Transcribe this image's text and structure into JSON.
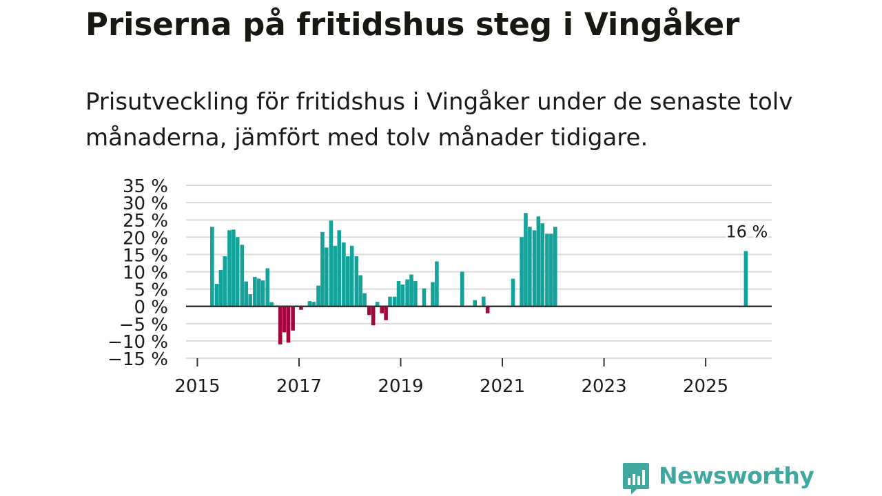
{
  "header": {
    "title": "Priserna på fritidshus steg i Vingåker",
    "subtitle": "Prisutveckling för fritidshus i Vingåker under de senaste tolv månaderna, jämfört med tolv månader tidigare."
  },
  "brand": {
    "name": "Newsworthy",
    "color": "#40a89e"
  },
  "colors": {
    "positive": "#13a39b",
    "negative": "#a3063f",
    "grid": "#d9d9d9",
    "zero_line": "#333333",
    "text": "#1a1a1a"
  },
  "chart_data": {
    "type": "bar",
    "title": "Priserna på fritidshus steg i Vingåker",
    "xlabel": "",
    "ylabel": "",
    "unit": "%",
    "xlim": [
      2014.75,
      2026.3
    ],
    "ylim": [
      -15,
      35
    ],
    "yticks": [
      -15,
      -10,
      -5,
      0,
      5,
      10,
      15,
      20,
      25,
      30,
      35
    ],
    "ytick_labels": [
      "−15 %",
      "−10 %",
      "−5 %",
      "0 %",
      "5 %",
      "10 %",
      "15 %",
      "20 %",
      "25 %",
      "30 %",
      "35 %"
    ],
    "xticks": [
      2015,
      2017,
      2019,
      2021,
      2023,
      2025
    ],
    "xtick_labels": [
      "2015",
      "2017",
      "2019",
      "2021",
      "2023",
      "2025"
    ],
    "annotation": {
      "x": 2025.79,
      "value": 16,
      "label": "16 %"
    },
    "series": [
      {
        "name": "Prisutveckling",
        "points": [
          {
            "x": 2015.29,
            "value": 23
          },
          {
            "x": 2015.38,
            "value": 6.5
          },
          {
            "x": 2015.46,
            "value": 10.5
          },
          {
            "x": 2015.54,
            "value": 14.5
          },
          {
            "x": 2015.63,
            "value": 22
          },
          {
            "x": 2015.71,
            "value": 22.2
          },
          {
            "x": 2015.79,
            "value": 20
          },
          {
            "x": 2015.88,
            "value": 17.8
          },
          {
            "x": 2015.96,
            "value": 7.2
          },
          {
            "x": 2016.04,
            "value": 3.5
          },
          {
            "x": 2016.13,
            "value": 8.5
          },
          {
            "x": 2016.21,
            "value": 8
          },
          {
            "x": 2016.29,
            "value": 7.5
          },
          {
            "x": 2016.38,
            "value": 11
          },
          {
            "x": 2016.46,
            "value": 1.2
          },
          {
            "x": 2016.63,
            "value": -11
          },
          {
            "x": 2016.71,
            "value": -7.5
          },
          {
            "x": 2016.79,
            "value": -10.5
          },
          {
            "x": 2016.88,
            "value": -7
          },
          {
            "x": 2017.04,
            "value": -1
          },
          {
            "x": 2017.21,
            "value": 1.5
          },
          {
            "x": 2017.29,
            "value": 1.3
          },
          {
            "x": 2017.38,
            "value": 6
          },
          {
            "x": 2017.46,
            "value": 21.5
          },
          {
            "x": 2017.54,
            "value": 17
          },
          {
            "x": 2017.63,
            "value": 24.8
          },
          {
            "x": 2017.71,
            "value": 17.5
          },
          {
            "x": 2017.79,
            "value": 22
          },
          {
            "x": 2017.88,
            "value": 18.5
          },
          {
            "x": 2017.96,
            "value": 14.5
          },
          {
            "x": 2018.04,
            "value": 17.5
          },
          {
            "x": 2018.13,
            "value": 14.5
          },
          {
            "x": 2018.21,
            "value": 9
          },
          {
            "x": 2018.29,
            "value": 3.8
          },
          {
            "x": 2018.38,
            "value": -2.5
          },
          {
            "x": 2018.46,
            "value": -5.5
          },
          {
            "x": 2018.54,
            "value": 1.3
          },
          {
            "x": 2018.63,
            "value": -2
          },
          {
            "x": 2018.71,
            "value": -4
          },
          {
            "x": 2018.79,
            "value": 2.8
          },
          {
            "x": 2018.88,
            "value": 2.8
          },
          {
            "x": 2018.96,
            "value": 7.3
          },
          {
            "x": 2019.04,
            "value": 6.3
          },
          {
            "x": 2019.13,
            "value": 7.8
          },
          {
            "x": 2019.21,
            "value": 9.2
          },
          {
            "x": 2019.29,
            "value": 7.3
          },
          {
            "x": 2019.46,
            "value": 5.2
          },
          {
            "x": 2019.63,
            "value": 7
          },
          {
            "x": 2019.71,
            "value": 13
          },
          {
            "x": 2020.21,
            "value": 10
          },
          {
            "x": 2020.46,
            "value": 1.8
          },
          {
            "x": 2020.63,
            "value": 2.8
          },
          {
            "x": 2020.71,
            "value": -2
          },
          {
            "x": 2021.21,
            "value": 8
          },
          {
            "x": 2021.38,
            "value": 20
          },
          {
            "x": 2021.46,
            "value": 27
          },
          {
            "x": 2021.54,
            "value": 23
          },
          {
            "x": 2021.63,
            "value": 22
          },
          {
            "x": 2021.71,
            "value": 26
          },
          {
            "x": 2021.79,
            "value": 24
          },
          {
            "x": 2021.88,
            "value": 21
          },
          {
            "x": 2021.96,
            "value": 21
          },
          {
            "x": 2022.04,
            "value": 23
          },
          {
            "x": 2025.79,
            "value": 16
          }
        ]
      }
    ]
  }
}
